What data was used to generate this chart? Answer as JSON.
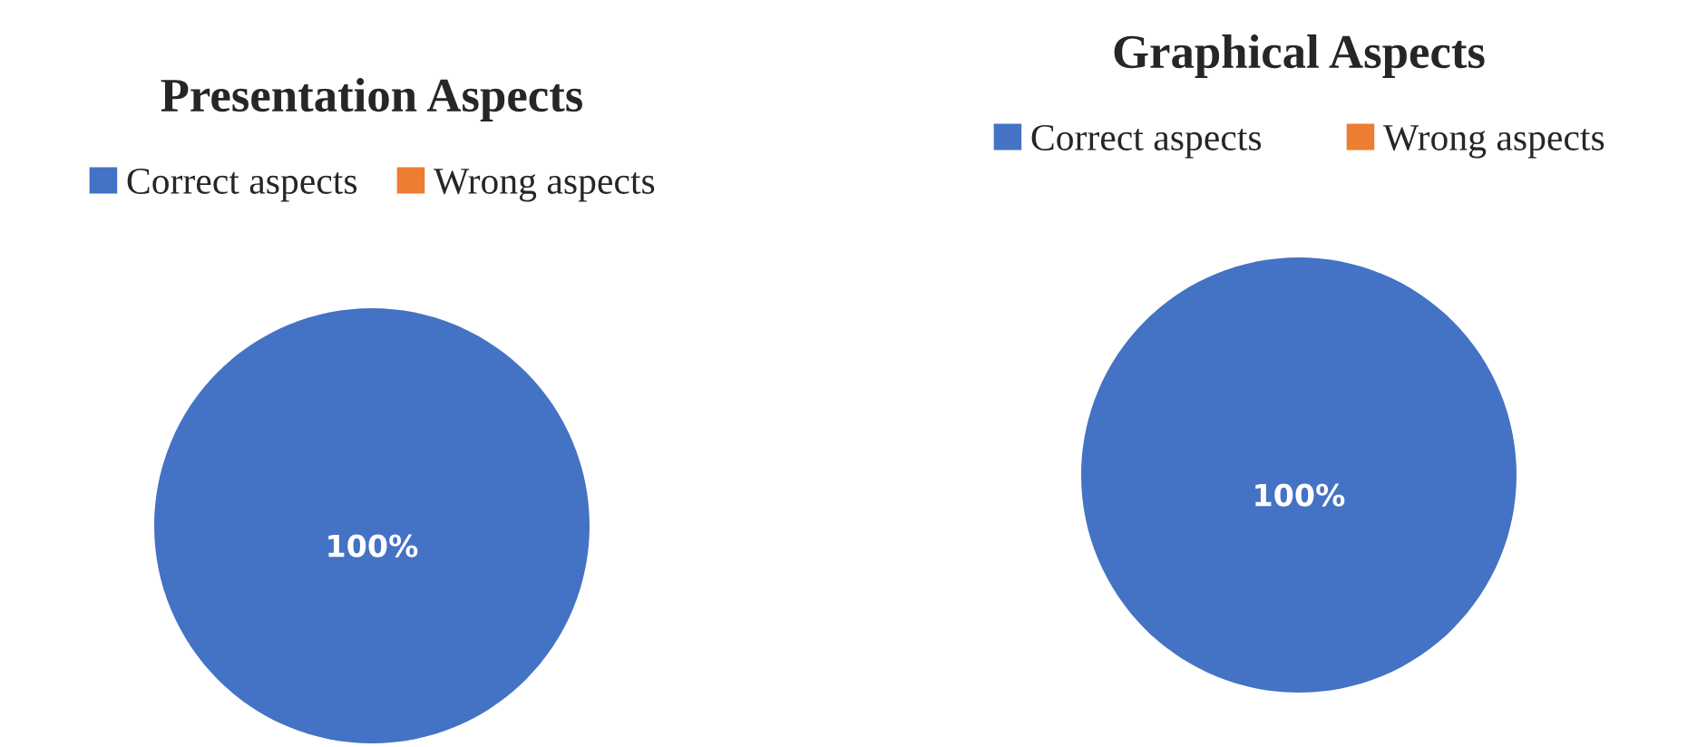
{
  "chart_data": [
    {
      "type": "pie",
      "title": "Presentation Aspects",
      "categories": [
        "Correct aspects",
        "Wrong aspects"
      ],
      "values": [
        100,
        0
      ],
      "colors": [
        "#4472c4",
        "#ed7d31"
      ],
      "value_labels": [
        "100%",
        null
      ],
      "legend": "top"
    },
    {
      "type": "pie",
      "title": "Graphical Aspects",
      "categories": [
        "Correct aspects",
        "Wrong aspects"
      ],
      "values": [
        100,
        0
      ],
      "colors": [
        "#4472c4",
        "#ed7d31"
      ],
      "value_labels": [
        "100%",
        null
      ],
      "legend": "top"
    }
  ]
}
